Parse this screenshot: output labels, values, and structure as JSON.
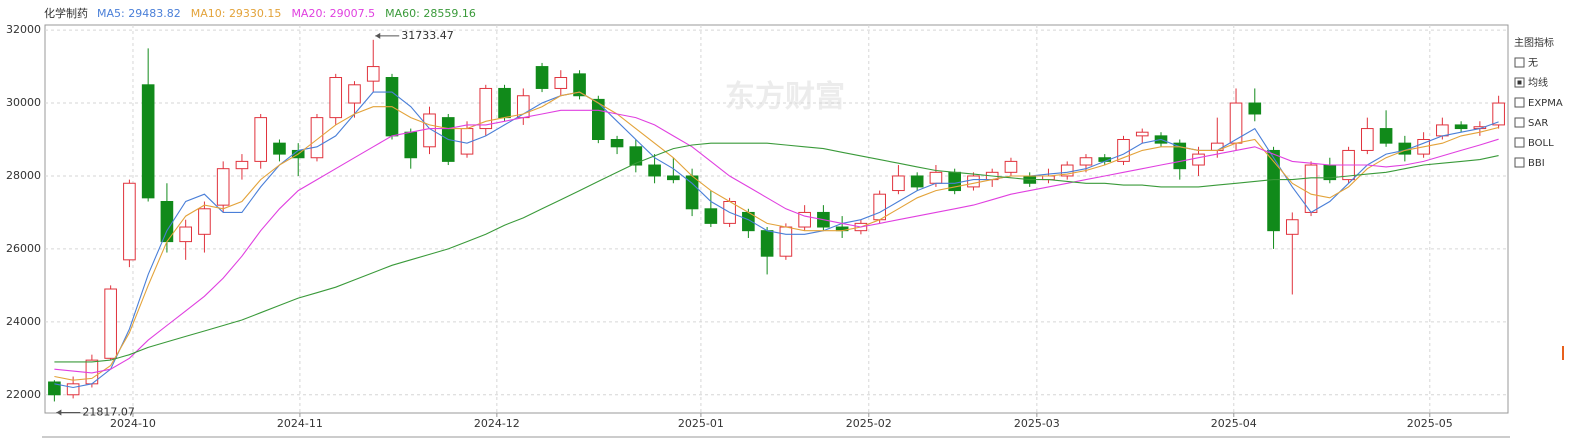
{
  "chart_data": {
    "type": "candlestick",
    "title": "化学制药",
    "watermark": "东方财富",
    "up_color": "#e0323c",
    "down_color": "#118a1a",
    "grid": true,
    "open": [
      22350,
      22000,
      22300,
      23000,
      25700,
      30500,
      27300,
      26200,
      26400,
      27200,
      28200,
      28400,
      28900,
      28700,
      28500,
      29600,
      30000,
      30600,
      30700,
      29200,
      28800,
      29600,
      28600,
      29300,
      30400,
      29600,
      31000,
      30400,
      30800,
      30100,
      29000,
      28800,
      28300,
      28000,
      28000,
      27100,
      26700,
      27000,
      26500,
      25800,
      26600,
      27000,
      26600,
      26500,
      26800,
      27600,
      28000,
      27800,
      28100,
      27700,
      27900,
      28100,
      28000,
      27900,
      28000,
      28300,
      28500,
      28400,
      29100,
      29100,
      28900,
      28300,
      28700,
      28900,
      30000,
      28700,
      26400,
      27000,
      28300,
      27900,
      28700,
      29300,
      28900,
      28600,
      29100,
      29400,
      29300,
      29400
    ],
    "high": [
      22400,
      22500,
      23100,
      25000,
      27900,
      31500,
      27800,
      26800,
      27300,
      28400,
      28600,
      29700,
      29000,
      28900,
      29700,
      30800,
      30600,
      31733.47,
      30800,
      29300,
      29900,
      29700,
      29500,
      30500,
      30500,
      30400,
      31100,
      30900,
      30900,
      30200,
      29100,
      29000,
      28600,
      28500,
      28200,
      27600,
      27400,
      27100,
      26600,
      26700,
      27200,
      27200,
      26900,
      26800,
      27600,
      28300,
      28100,
      28300,
      28200,
      28100,
      28200,
      28500,
      28100,
      28200,
      28400,
      28600,
      28600,
      29100,
      29300,
      29200,
      29000,
      28800,
      29600,
      30400,
      30400,
      28800,
      27000,
      28400,
      28500,
      28800,
      29600,
      29800,
      29100,
      29200,
      29600,
      29500,
      29500,
      30200
    ],
    "low": [
      21817.07,
      21900,
      22200,
      22950,
      25500,
      27300,
      25900,
      25700,
      25900,
      27000,
      27900,
      28200,
      28400,
      28000,
      28400,
      29400,
      29600,
      30300,
      29000,
      28200,
      28600,
      28300,
      28500,
      29100,
      29500,
      29400,
      30300,
      30200,
      30100,
      28900,
      28600,
      28100,
      27800,
      27800,
      26900,
      26600,
      26600,
      26300,
      25300,
      25700,
      26500,
      26500,
      26300,
      26400,
      26700,
      27500,
      27600,
      27700,
      27500,
      27600,
      27700,
      28000,
      27700,
      27800,
      27900,
      28100,
      28300,
      28300,
      28900,
      28800,
      27900,
      28000,
      28500,
      28700,
      29500,
      26000,
      24750,
      26900,
      27800,
      27800,
      28600,
      28800,
      28400,
      28500,
      29000,
      29200,
      29100,
      29300
    ],
    "close": [
      22000,
      22300,
      22950,
      24900,
      27800,
      27400,
      26200,
      26600,
      27100,
      28200,
      28400,
      29600,
      28600,
      28500,
      29600,
      30700,
      30500,
      31000,
      29100,
      28500,
      29700,
      28400,
      29300,
      30400,
      29600,
      30200,
      30400,
      30700,
      30200,
      29000,
      28800,
      28300,
      28000,
      27900,
      27100,
      26700,
      27300,
      26500,
      25800,
      26600,
      27000,
      26600,
      26500,
      26700,
      27500,
      28000,
      27700,
      28100,
      27600,
      28000,
      28100,
      28400,
      27800,
      28000,
      28300,
      28500,
      28400,
      29000,
      29200,
      28900,
      28200,
      28600,
      28900,
      30000,
      29700,
      26500,
      26800,
      28300,
      27900,
      28700,
      29300,
      28900,
      28600,
      29000,
      29400,
      29300,
      29350,
      30000
    ],
    "series": [
      {
        "name": "MA5",
        "color": "#4a7fd8",
        "values": [
          22300,
          22200,
          22300,
          22700,
          23800,
          25300,
          26500,
          27300,
          27500,
          27000,
          27000,
          27700,
          28300,
          28700,
          28800,
          29100,
          29700,
          30300,
          30300,
          29900,
          29300,
          29000,
          28900,
          29100,
          29400,
          29700,
          30000,
          30200,
          30300,
          30000,
          29500,
          29000,
          28500,
          28200,
          27800,
          27300,
          27000,
          26800,
          26500,
          26400,
          26400,
          26500,
          26700,
          26800,
          27000,
          27300,
          27600,
          27800,
          27800,
          27900,
          27900,
          28000,
          28000,
          28050,
          28100,
          28200,
          28400,
          28600,
          28900,
          29000,
          28800,
          28700,
          28700,
          29000,
          29300,
          28500,
          27700,
          27000,
          27300,
          27800,
          28300,
          28600,
          28700,
          28900,
          29100,
          29200,
          29300,
          29483.82
        ]
      },
      {
        "name": "MA10",
        "color": "#e3a33a",
        "values": [
          22500,
          22400,
          22450,
          22800,
          23700,
          25000,
          26200,
          26900,
          27200,
          27100,
          27300,
          27900,
          28300,
          28600,
          29000,
          29400,
          29700,
          29900,
          29900,
          29600,
          29400,
          29300,
          29300,
          29500,
          29600,
          29700,
          29900,
          30200,
          30300,
          30000,
          29700,
          29300,
          28900,
          28500,
          28000,
          27600,
          27300,
          27000,
          26700,
          26600,
          26500,
          26500,
          26500,
          26600,
          26800,
          27100,
          27400,
          27600,
          27700,
          27800,
          27900,
          28000,
          28000,
          28000,
          28050,
          28150,
          28300,
          28500,
          28700,
          28800,
          28800,
          28700,
          28700,
          28900,
          29000,
          28400,
          27800,
          27500,
          27400,
          27700,
          28200,
          28500,
          28700,
          28800,
          28900,
          29100,
          29200,
          29330.15
        ]
      },
      {
        "name": "MA20",
        "color": "#e040e0",
        "values": [
          22700,
          22650,
          22600,
          22700,
          23000,
          23500,
          23900,
          24300,
          24700,
          25200,
          25800,
          26500,
          27100,
          27600,
          27900,
          28200,
          28500,
          28800,
          29100,
          29200,
          29300,
          29300,
          29400,
          29400,
          29500,
          29600,
          29700,
          29800,
          29800,
          29800,
          29700,
          29600,
          29400,
          29100,
          28800,
          28400,
          28000,
          27700,
          27400,
          27100,
          26900,
          26800,
          26700,
          26600,
          26700,
          26800,
          26900,
          27000,
          27100,
          27200,
          27350,
          27500,
          27600,
          27700,
          27800,
          27900,
          28000,
          28100,
          28200,
          28300,
          28400,
          28500,
          28600,
          28700,
          28800,
          28600,
          28400,
          28350,
          28300,
          28300,
          28300,
          28250,
          28300,
          28400,
          28550,
          28700,
          28850,
          29007.5
        ]
      },
      {
        "name": "MA60",
        "color": "#3a9a3a",
        "values": [
          22900,
          22900,
          22900,
          22950,
          23100,
          23300,
          23450,
          23600,
          23750,
          23900,
          24050,
          24250,
          24450,
          24650,
          24800,
          24950,
          25150,
          25350,
          25550,
          25700,
          25850,
          26000,
          26200,
          26400,
          26650,
          26850,
          27100,
          27350,
          27600,
          27850,
          28100,
          28350,
          28550,
          28750,
          28850,
          28900,
          28900,
          28900,
          28900,
          28850,
          28800,
          28750,
          28650,
          28550,
          28450,
          28350,
          28250,
          28150,
          28100,
          28050,
          28000,
          27950,
          27900,
          27900,
          27850,
          27800,
          27800,
          27750,
          27750,
          27700,
          27700,
          27700,
          27750,
          27800,
          27850,
          27900,
          27900,
          27950,
          27950,
          28000,
          28050,
          28100,
          28200,
          28300,
          28350,
          28400,
          28450,
          28559.16
        ]
      }
    ],
    "xlim": [
      0,
      78
    ],
    "xticks": [
      {
        "value": 4.69,
        "label": "2024-10"
      },
      {
        "value": 13.59,
        "label": "2024-11"
      },
      {
        "value": 24.09,
        "label": "2024-12"
      },
      {
        "value": 34.97,
        "label": "2025-01"
      },
      {
        "value": 43.92,
        "label": "2025-02"
      },
      {
        "value": 52.88,
        "label": "2025-03"
      },
      {
        "value": 63.38,
        "label": "2025-04"
      },
      {
        "value": 73.83,
        "label": "2025-05"
      }
    ],
    "ylim": [
      21500,
      32140
    ],
    "yticks": [
      22000,
      24000,
      26000,
      28000,
      30000,
      32000
    ],
    "annotations": [
      {
        "kind": "high",
        "index": 17
      },
      {
        "kind": "low",
        "index": 0
      }
    ]
  },
  "indicator_panel": {
    "title": "主图指标",
    "options": [
      {
        "label": "无",
        "checked": false
      },
      {
        "label": "均线",
        "checked": true
      },
      {
        "label": "EXPMA",
        "checked": false
      },
      {
        "label": "SAR",
        "checked": false
      },
      {
        "label": "BOLL",
        "checked": false
      },
      {
        "label": "BBI",
        "checked": false
      }
    ]
  }
}
